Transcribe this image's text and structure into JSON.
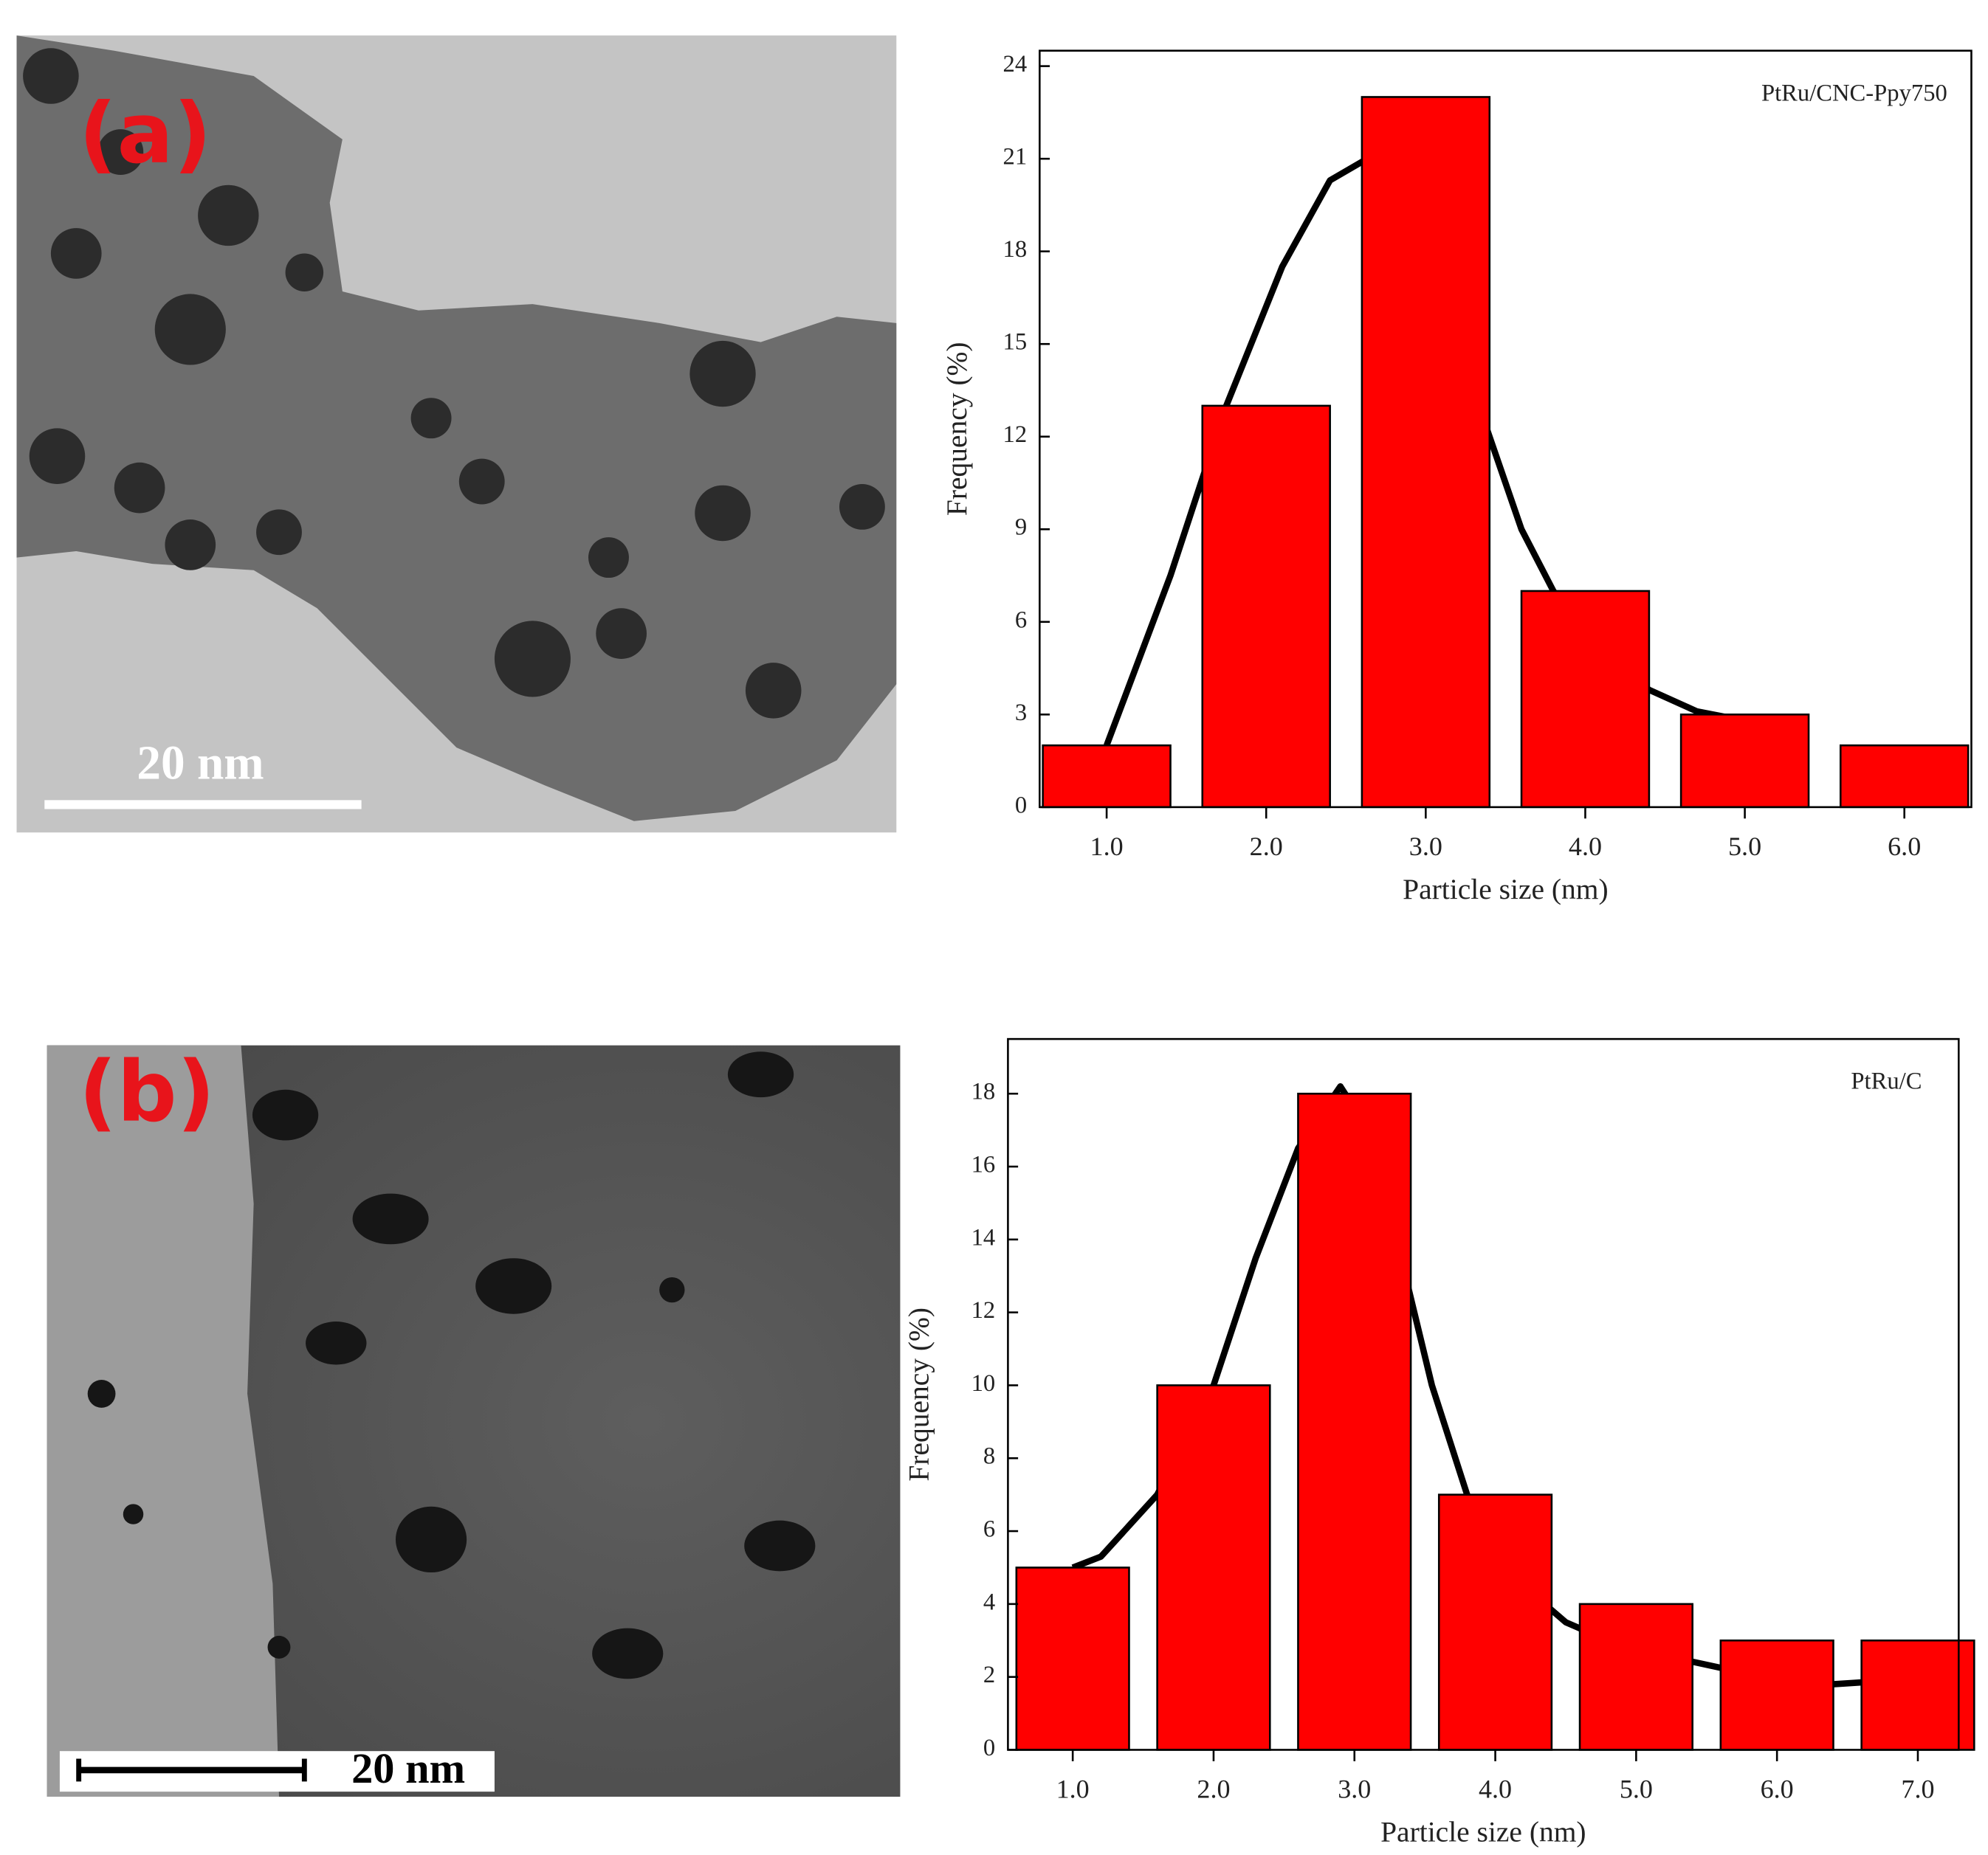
{
  "images": [
    {
      "label": "(a)",
      "scale_bar": "20 nm"
    },
    {
      "label": "(b)",
      "scale_bar": "20 nm"
    }
  ],
  "chart_data": [
    {
      "type": "bar",
      "annotation": "PtRu/CNC-Ppy750",
      "x": [
        1,
        2,
        3,
        4,
        5,
        6
      ],
      "values": [
        2,
        13,
        23,
        7,
        3,
        2
      ],
      "color": "#ff0000",
      "xlim": [
        0.58,
        6.42
      ],
      "xticks": [
        {
          "value": 1,
          "label": "1.0"
        },
        {
          "value": 2,
          "label": "2.0"
        },
        {
          "value": 3,
          "label": "3.0"
        },
        {
          "value": 4,
          "label": "4.0"
        },
        {
          "value": 5,
          "label": "5.0"
        },
        {
          "value": 6,
          "label": "6.0"
        }
      ],
      "ylim": [
        0,
        24.5
      ],
      "yticks": [
        0,
        3,
        6,
        9,
        12,
        15,
        18,
        21,
        24
      ],
      "xlabel": "Particle size (nm)",
      "ylabel": "Frequency (%)",
      "fit": {
        "color": "#000000",
        "x": [
          1.0,
          1.4,
          1.75,
          2.1,
          2.4,
          2.6,
          2.8,
          3.0,
          3.2,
          3.4,
          3.6,
          3.8,
          4.1,
          4.4,
          4.7,
          5.0
        ],
        "values": [
          2,
          7.5,
          13,
          17.5,
          20.3,
          20.9,
          20.4,
          18,
          15,
          12,
          9,
          7,
          5,
          3.8,
          3.1,
          2.8
        ]
      }
    },
    {
      "type": "bar",
      "annotation": "PtRu/C",
      "x": [
        1,
        2,
        3,
        4,
        5,
        6,
        7
      ],
      "values": [
        5,
        10,
        18,
        7,
        4,
        3,
        3
      ],
      "color": "#ff0000",
      "xlim": [
        0.54,
        7.29
      ],
      "xticks": [
        {
          "value": 1,
          "label": "1.0"
        },
        {
          "value": 2,
          "label": "2.0"
        },
        {
          "value": 3,
          "label": "3.0"
        },
        {
          "value": 4,
          "label": "4.0"
        },
        {
          "value": 5,
          "label": "5.0"
        },
        {
          "value": 6,
          "label": "6.0"
        },
        {
          "value": 7,
          "label": "7.0"
        }
      ],
      "ylim": [
        0,
        19.5
      ],
      "yticks": [
        0,
        2,
        4,
        6,
        8,
        10,
        12,
        14,
        16,
        18
      ],
      "xlabel": "Particle size (nm)",
      "ylabel": "Frequency (%)",
      "fit": {
        "color": "#000000",
        "x": [
          1,
          1.2,
          1.6,
          2.0,
          2.3,
          2.6,
          2.9,
          3.1,
          3.3,
          3.55,
          3.8,
          4.2,
          4.5,
          4.8,
          5.3,
          5.9,
          6.4,
          6.8,
          7.1
        ],
        "values": [
          5,
          5.3,
          7,
          10,
          13.5,
          16.5,
          18.2,
          17,
          14,
          10,
          7,
          4.5,
          3.5,
          3,
          2.5,
          2,
          1.8,
          1.9,
          2.3
        ]
      }
    }
  ]
}
